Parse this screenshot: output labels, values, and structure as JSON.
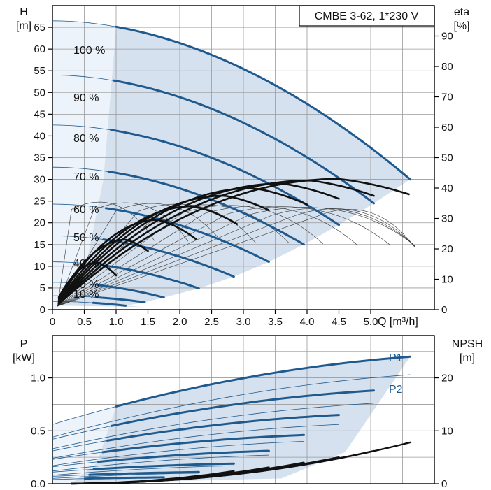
{
  "chart_data": [
    {
      "type": "line",
      "title": "CMBE 3-62, 1*230 V",
      "xlabel": "Q [m³/h]",
      "ylabel_left": [
        "H",
        "[m]"
      ],
      "ylabel_right": [
        "eta",
        "[%]"
      ],
      "xlim": [
        0,
        6.0
      ],
      "ylim": [
        0,
        70
      ],
      "y2lim": [
        0,
        100
      ],
      "x_ticks": [
        "0",
        "0.5",
        "1.0",
        "1.5",
        "2.0",
        "2.5",
        "3.0",
        "3.5",
        "4.0",
        "4.5",
        "5.0"
      ],
      "y_ticks": [
        "0",
        "5",
        "10",
        "15",
        "20",
        "25",
        "30",
        "35",
        "40",
        "45",
        "50",
        "55",
        "60",
        "65"
      ],
      "y2_ticks": [
        "0",
        "10",
        "20",
        "30",
        "40",
        "50",
        "60",
        "70",
        "80",
        "90"
      ],
      "grid": true,
      "colors": {
        "head": "#1f5a8f",
        "efficiency": "#111111",
        "region": "#d5e1ee",
        "region_light": "#ecf3fa"
      },
      "speed_labels": [
        "100 %",
        "90 %",
        "80 %",
        "70 %",
        "60 %",
        "50 %",
        "40 %",
        "30 %",
        "10 %"
      ],
      "head_curves": [
        {
          "speed": 100,
          "h0": 66.5,
          "qmax": 5.62,
          "hend": 30.0
        },
        {
          "speed": 90,
          "h0": 54.0,
          "qmax": 5.05,
          "hend": 24.5
        },
        {
          "speed": 80,
          "h0": 42.5,
          "qmax": 4.5,
          "hend": 19.5
        },
        {
          "speed": 70,
          "h0": 32.8,
          "qmax": 3.95,
          "hend": 15.0
        },
        {
          "speed": 60,
          "h0": 24.3,
          "qmax": 3.4,
          "hend": 11.0
        },
        {
          "speed": 50,
          "h0": 17.0,
          "qmax": 2.85,
          "hend": 7.6
        },
        {
          "speed": 40,
          "h0": 11.0,
          "qmax": 2.3,
          "hend": 4.9
        },
        {
          "speed": 30,
          "h0": 6.3,
          "qmax": 1.75,
          "hend": 2.8
        },
        {
          "speed": 20,
          "h0": 3.2,
          "qmax": 1.45,
          "hend": 1.7
        },
        {
          "speed": 10,
          "h0": 1.9,
          "qmax": 1.15,
          "hend": 0.9
        }
      ],
      "efficiency_curves": [
        {
          "qpeak": 4.5,
          "etapeak": 43.0,
          "qend": 5.6
        },
        {
          "qpeak": 4.05,
          "etapeak": 42.5,
          "qend": 5.05
        },
        {
          "qpeak": 3.6,
          "etapeak": 41.5,
          "qend": 4.5
        },
        {
          "qpeak": 3.15,
          "etapeak": 40.0,
          "qend": 4.0
        },
        {
          "qpeak": 2.7,
          "etapeak": 37.5,
          "qend": 3.4
        },
        {
          "qpeak": 2.2,
          "etapeak": 34.0,
          "qend": 2.9
        },
        {
          "qpeak": 1.65,
          "etapeak": 29.5,
          "qend": 2.25
        },
        {
          "qpeak": 1.15,
          "etapeak": 23.0,
          "qend": 1.5
        },
        {
          "qpeak": 0.7,
          "etapeak": 15.5,
          "qend": 1.0
        }
      ]
    },
    {
      "type": "line",
      "xlabel": "",
      "ylabel_left": [
        "P",
        "[kW]"
      ],
      "ylabel_right": [
        "NPSH",
        "[m]"
      ],
      "xlim": [
        0,
        6.0
      ],
      "ylim": [
        0,
        1.4
      ],
      "y2lim": [
        0,
        28
      ],
      "y_ticks": [
        "0.0",
        "0.5",
        "1.0"
      ],
      "y2_ticks": [
        "0",
        "10",
        "20"
      ],
      "grid": true,
      "series_labels": [
        "P1",
        "P2"
      ],
      "p1_curves": [
        {
          "qmax": 5.62,
          "p0": 0.56,
          "pend": 1.2
        },
        {
          "qmax": 5.05,
          "p0": 0.42,
          "pend": 0.88
        },
        {
          "qmax": 4.5,
          "p0": 0.31,
          "pend": 0.65
        },
        {
          "qmax": 3.95,
          "p0": 0.23,
          "pend": 0.46
        },
        {
          "qmax": 3.4,
          "p0": 0.16,
          "pend": 0.31
        },
        {
          "qmax": 2.85,
          "p0": 0.11,
          "pend": 0.19
        },
        {
          "qmax": 2.3,
          "p0": 0.07,
          "pend": 0.11
        },
        {
          "qmax": 1.75,
          "p0": 0.04,
          "pend": 0.06
        }
      ],
      "p2_curves": [
        {
          "qmax": 5.62,
          "p0": 0.44,
          "pend": 1.03
        },
        {
          "qmax": 5.05,
          "p0": 0.33,
          "pend": 0.76
        },
        {
          "qmax": 4.5,
          "p0": 0.24,
          "pend": 0.56
        },
        {
          "qmax": 3.95,
          "p0": 0.17,
          "pend": 0.4
        },
        {
          "qmax": 3.4,
          "p0": 0.12,
          "pend": 0.27
        },
        {
          "qmax": 2.85,
          "p0": 0.08,
          "pend": 0.17
        },
        {
          "qmax": 2.3,
          "p0": 0.05,
          "pend": 0.1
        }
      ],
      "npsh_curves": [
        {
          "qmax": 5.62,
          "nend": 7.8
        },
        {
          "qmax": 5.05,
          "nend": 6.2
        },
        {
          "qmax": 4.5,
          "nend": 5.0
        },
        {
          "qmax": 3.95,
          "nend": 4.0
        },
        {
          "qmax": 3.4,
          "nend": 3.1
        },
        {
          "qmax": 2.85,
          "nend": 2.4
        }
      ]
    }
  ]
}
